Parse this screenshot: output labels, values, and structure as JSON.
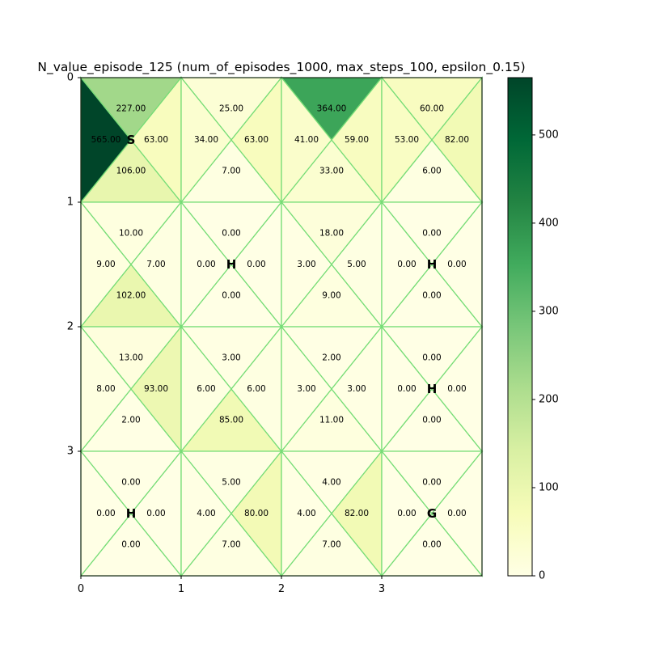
{
  "chart_data": {
    "type": "heatmap",
    "title": "N_value_episode_125 (num_of_episodes_1000, max_steps_100, epsilon_0.15)",
    "grid": {
      "rows": 4,
      "cols": 4
    },
    "x_ticks": [
      "0",
      "1",
      "2",
      "3"
    ],
    "y_ticks": [
      "0",
      "1",
      "2",
      "3"
    ],
    "colormap": "YlGn",
    "edge_color": "#77dd77",
    "value_range": [
      0,
      565
    ],
    "colorbar_ticks": [
      "0",
      "100",
      "200",
      "300",
      "400",
      "500"
    ],
    "colorbar_tick_values": [
      0,
      100,
      200,
      300,
      400,
      500
    ],
    "cells": [
      {
        "row": 0,
        "col": 0,
        "marker": "S",
        "up": 227.0,
        "left": 565.0,
        "right": 63.0,
        "down": 106.0
      },
      {
        "row": 0,
        "col": 1,
        "marker": "",
        "up": 25.0,
        "left": 34.0,
        "right": 63.0,
        "down": 7.0
      },
      {
        "row": 0,
        "col": 2,
        "marker": "",
        "up": 364.0,
        "left": 41.0,
        "right": 59.0,
        "down": 33.0
      },
      {
        "row": 0,
        "col": 3,
        "marker": "",
        "up": 60.0,
        "left": 53.0,
        "right": 82.0,
        "down": 6.0
      },
      {
        "row": 1,
        "col": 0,
        "marker": "",
        "up": 10.0,
        "left": 9.0,
        "right": 7.0,
        "down": 102.0
      },
      {
        "row": 1,
        "col": 1,
        "marker": "H",
        "up": 0.0,
        "left": 0.0,
        "right": 0.0,
        "down": 0.0
      },
      {
        "row": 1,
        "col": 2,
        "marker": "",
        "up": 18.0,
        "left": 3.0,
        "right": 5.0,
        "down": 9.0
      },
      {
        "row": 1,
        "col": 3,
        "marker": "H",
        "up": 0.0,
        "left": 0.0,
        "right": 0.0,
        "down": 0.0
      },
      {
        "row": 2,
        "col": 0,
        "marker": "",
        "up": 13.0,
        "left": 8.0,
        "right": 93.0,
        "down": 2.0
      },
      {
        "row": 2,
        "col": 1,
        "marker": "",
        "up": 3.0,
        "left": 6.0,
        "right": 6.0,
        "down": 85.0
      },
      {
        "row": 2,
        "col": 2,
        "marker": "",
        "up": 2.0,
        "left": 3.0,
        "right": 3.0,
        "down": 11.0
      },
      {
        "row": 2,
        "col": 3,
        "marker": "H",
        "up": 0.0,
        "left": 0.0,
        "right": 0.0,
        "down": 0.0
      },
      {
        "row": 3,
        "col": 0,
        "marker": "H",
        "up": 0.0,
        "left": 0.0,
        "right": 0.0,
        "down": 0.0
      },
      {
        "row": 3,
        "col": 1,
        "marker": "",
        "up": 5.0,
        "left": 4.0,
        "right": 80.0,
        "down": 7.0
      },
      {
        "row": 3,
        "col": 2,
        "marker": "",
        "up": 4.0,
        "left": 4.0,
        "right": 82.0,
        "down": 7.0
      },
      {
        "row": 3,
        "col": 3,
        "marker": "G",
        "up": 0.0,
        "left": 0.0,
        "right": 0.0,
        "down": 0.0
      }
    ]
  }
}
